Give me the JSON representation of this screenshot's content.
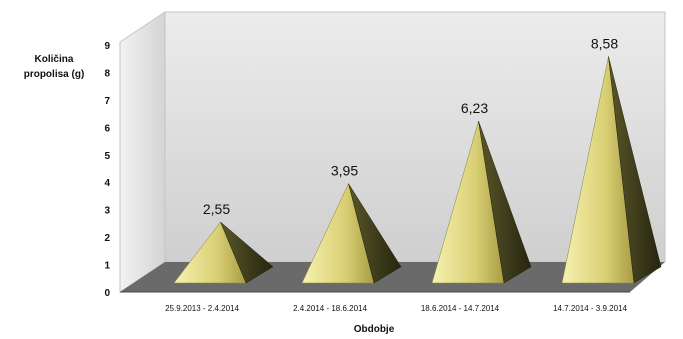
{
  "chart_data": {
    "type": "bar",
    "bar_shape": "pyramid-3d",
    "title": "",
    "xlabel": "Obdobje",
    "ylabel_lines": [
      "Količina",
      "propolisa (g)"
    ],
    "categories": [
      "25.9.2013 - 2.4.2014",
      "2.4.2014 - 18.6.2014",
      "18.6.2014 - 14.7.2014",
      "14.7.2014 - 3.9.2014"
    ],
    "values": [
      2.55,
      3.95,
      6.23,
      8.58
    ],
    "value_labels": [
      "2,55",
      "3,95",
      "6,23",
      "8,58"
    ],
    "ylim": [
      0,
      9
    ],
    "yticks": [
      "0",
      "1",
      "2",
      "3",
      "4",
      "5",
      "6",
      "7",
      "8",
      "9"
    ],
    "grid": false,
    "legend": "none",
    "colors": {
      "pyramid_light": "#f4f0a0",
      "pyramid_mid": "#bdb25a",
      "pyramid_dark": "#3e3c1c",
      "wall": "#d8d8d8",
      "floor": "#6a6a6a",
      "text": "#111111"
    }
  }
}
